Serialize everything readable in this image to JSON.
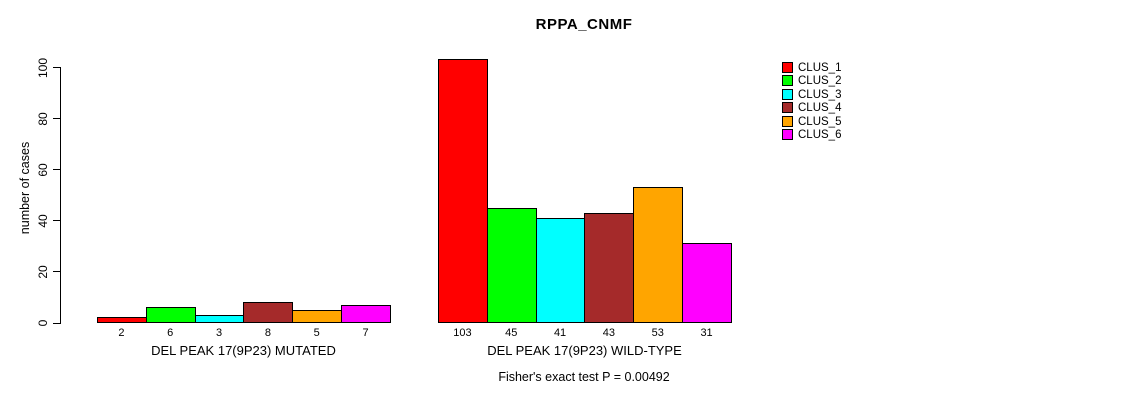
{
  "title": "RPPA_CNMF",
  "chart_data": {
    "type": "bar",
    "title": "RPPA_CNMF",
    "xlabel": "",
    "ylabel": "number of cases",
    "ylim": [
      0,
      100
    ],
    "yticks": [
      0,
      20,
      40,
      60,
      80,
      100
    ],
    "grid": false,
    "legend_position": "right",
    "bar_value_labels_shown": true,
    "groups": [
      {
        "label": "DEL PEAK 17(9P23) MUTATED",
        "values": [
          2,
          6,
          3,
          8,
          5,
          7
        ],
        "value_labels": [
          "2",
          "6",
          "3",
          "8",
          "5",
          "7"
        ]
      },
      {
        "label": "DEL PEAK 17(9P23) WILD-TYPE",
        "values": [
          103,
          45,
          41,
          43,
          53,
          31
        ],
        "value_labels": [
          "103",
          "45",
          "41",
          "43",
          "53",
          "31"
        ]
      }
    ],
    "series": [
      {
        "name": "CLUS_1",
        "color": "#FF0000",
        "values": [
          2,
          103
        ]
      },
      {
        "name": "CLUS_2",
        "color": "#00FF00",
        "values": [
          6,
          45
        ]
      },
      {
        "name": "CLUS_3",
        "color": "#00FFFF",
        "values": [
          3,
          41
        ]
      },
      {
        "name": "CLUS_4",
        "color": "#A52A2A",
        "values": [
          8,
          43
        ]
      },
      {
        "name": "CLUS_5",
        "color": "#FFA500",
        "values": [
          5,
          53
        ]
      },
      {
        "name": "CLUS_6",
        "color": "#FF00FF",
        "values": [
          7,
          31
        ]
      }
    ],
    "annotation": "Fisher's exact test P = 0.00492",
    "axis_color": "#000000",
    "text_color": "#000000",
    "background_color": "#FFFFFF"
  }
}
